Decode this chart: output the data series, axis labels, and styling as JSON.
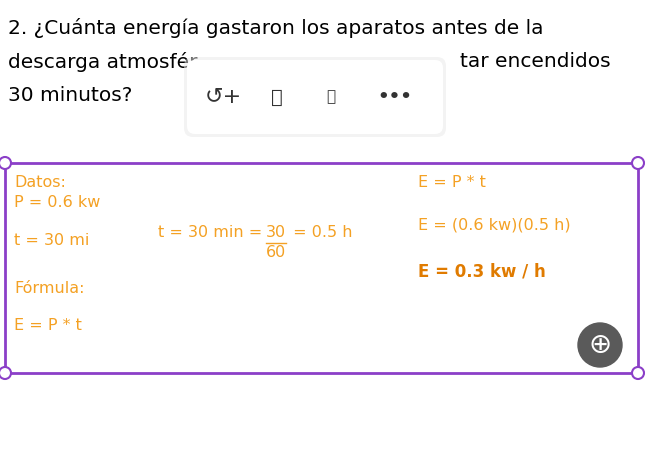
{
  "title_line1": "2. ¿Cuánta energía gastaron los aparatos antes de la",
  "title_line2": "descarga atmosfér",
  "title_line2b": "tar encendidos",
  "title_line3": "30 minutos?",
  "orange_color": "#F4A124",
  "orange_bold_color": "#E07B00",
  "box_border_color": "#8B3FC8",
  "background_color": "#FFFFFF",
  "datos_label": "Datos:",
  "p_value": "P = 0.6 kw",
  "t_value": "t = 30 mi",
  "formula_label": "Fórmula:",
  "formula_eq": "E = P * t",
  "t_conversion_left": "t = 30 min = ",
  "t_conversion_num": "30",
  "t_conversion_den": "60",
  "t_conversion_right": " = 0.5 h",
  "right_eq1": "E = P * t",
  "right_eq2": "E = (0.6 kw)(0.5 h)",
  "right_eq3": "E = 0.3 kw / h",
  "title_fontsize": 14.5,
  "body_fontsize": 11.5
}
